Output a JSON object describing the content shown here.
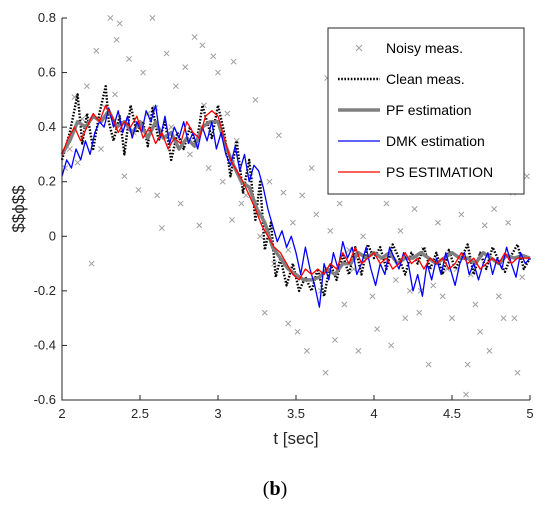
{
  "caption": {
    "open": "(",
    "letter": "b",
    "close": ")"
  },
  "chart_data": {
    "type": "line",
    "xlabel": "t [sec]",
    "ylabel": "$$ϕ$$",
    "xlim": [
      2,
      5
    ],
    "ylim": [
      -0.6,
      0.8
    ],
    "xticks": [
      2,
      2.5,
      3,
      3.5,
      4,
      4.5,
      5
    ],
    "xtick_labels": [
      "2",
      "2.5",
      "3",
      "3.5",
      "4",
      "4.5",
      "5"
    ],
    "yticks": [
      -0.6,
      -0.4,
      -0.2,
      0,
      0.2,
      0.4,
      0.6,
      0.8
    ],
    "ytick_labels": [
      "-0.6",
      "-0.4",
      "-0.2",
      "0",
      "0.2",
      "0.4",
      "0.6",
      "0.8"
    ],
    "grid": false,
    "legend_position": "top-right",
    "series": [
      {
        "name": "Noisy meas.",
        "style": "markers-x",
        "color": "#a0a0a0",
        "x": [
          2.02,
          2.05,
          2.08,
          2.1,
          2.13,
          2.16,
          2.19,
          2.22,
          2.25,
          2.28,
          2.31,
          2.34,
          2.37,
          2.4,
          2.43,
          2.46,
          2.49,
          2.52,
          2.55,
          2.58,
          2.61,
          2.64,
          2.67,
          2.7,
          2.73,
          2.76,
          2.79,
          2.82,
          2.85,
          2.88,
          2.91,
          2.94,
          2.97,
          3.0,
          3.03,
          3.06,
          3.09,
          3.12,
          3.15,
          3.18,
          3.21,
          3.24,
          3.27,
          3.3,
          3.33,
          3.36,
          3.39,
          3.42,
          3.45,
          3.48,
          3.51,
          3.54,
          3.57,
          3.6,
          3.63,
          3.66,
          3.69,
          3.72,
          3.75,
          3.78,
          3.81,
          3.84,
          3.87,
          3.9,
          3.93,
          3.96,
          3.99,
          4.02,
          4.05,
          4.08,
          4.11,
          4.14,
          4.17,
          4.2,
          4.23,
          4.26,
          4.29,
          4.32,
          4.35,
          4.38,
          4.41,
          4.44,
          4.47,
          4.5,
          4.53,
          4.56,
          4.59,
          4.62,
          4.65,
          4.68,
          4.71,
          4.74,
          4.77,
          4.8,
          4.83,
          4.86,
          4.89,
          4.92,
          4.95,
          4.98,
          2.35,
          2.6,
          2.9,
          3.1,
          3.45,
          3.7,
          4.0,
          4.3,
          4.6,
          4.9
        ],
        "y": [
          0.25,
          0.32,
          0.51,
          0.27,
          0.43,
          0.55,
          -0.1,
          0.68,
          0.32,
          0.47,
          0.8,
          0.52,
          0.78,
          0.22,
          0.65,
          0.38,
          0.17,
          0.6,
          0.45,
          0.8,
          0.15,
          0.03,
          0.67,
          0.4,
          0.55,
          0.12,
          0.62,
          0.3,
          0.73,
          0.04,
          0.48,
          0.25,
          0.66,
          0.6,
          0.2,
          0.45,
          0.06,
          0.35,
          0.12,
          0.15,
          0.22,
          0.5,
          0.0,
          -0.28,
          0.2,
          -0.1,
          0.37,
          0.16,
          -0.32,
          0.05,
          -0.35,
          0.15,
          -0.42,
          0.25,
          0.08,
          -0.2,
          -0.5,
          0.02,
          -0.38,
          0.12,
          -0.25,
          -0.05,
          -0.12,
          -0.42,
          0.0,
          0.2,
          -0.22,
          -0.34,
          -0.08,
          0.12,
          -0.4,
          -0.16,
          0.02,
          -0.3,
          -0.2,
          0.1,
          -0.28,
          -0.05,
          -0.47,
          -0.18,
          0.05,
          -0.22,
          -0.12,
          -0.3,
          -0.12,
          0.08,
          -0.58,
          -0.14,
          -0.25,
          -0.35,
          0.04,
          -0.42,
          0.1,
          -0.22,
          -0.3,
          0.05,
          0.16,
          -0.5,
          -0.15,
          0.22,
          0.72,
          0.47,
          0.7,
          0.64,
          -0.05,
          0.58,
          0.17,
          -0.2,
          -0.47,
          -0.3
        ]
      },
      {
        "name": "Clean meas.",
        "style": "dotted",
        "color": "#000000",
        "x": [
          2.0,
          2.05,
          2.1,
          2.13,
          2.16,
          2.2,
          2.24,
          2.28,
          2.3,
          2.33,
          2.37,
          2.4,
          2.44,
          2.48,
          2.52,
          2.55,
          2.58,
          2.62,
          2.66,
          2.7,
          2.74,
          2.78,
          2.82,
          2.86,
          2.9,
          2.93,
          2.96,
          3.0,
          3.04,
          3.08,
          3.12,
          3.16,
          3.2,
          3.24,
          3.27,
          3.3,
          3.34,
          3.37,
          3.4,
          3.44,
          3.48,
          3.52,
          3.56,
          3.6,
          3.64,
          3.68,
          3.72,
          3.76,
          3.8,
          3.84,
          3.88,
          3.92,
          3.96,
          4.0,
          4.04,
          4.08,
          4.12,
          4.16,
          4.2,
          4.24,
          4.28,
          4.32,
          4.36,
          4.4,
          4.44,
          4.48,
          4.52,
          4.56,
          4.6,
          4.64,
          4.68,
          4.72,
          4.76,
          4.8,
          4.84,
          4.88,
          4.92,
          4.96,
          5.0
        ],
        "y": [
          0.28,
          0.38,
          0.52,
          0.34,
          0.45,
          0.32,
          0.45,
          0.55,
          0.42,
          0.35,
          0.44,
          0.3,
          0.48,
          0.38,
          0.42,
          0.33,
          0.47,
          0.35,
          0.42,
          0.28,
          0.38,
          0.32,
          0.4,
          0.33,
          0.48,
          0.42,
          0.36,
          0.48,
          0.38,
          0.22,
          0.35,
          0.16,
          0.28,
          0.06,
          0.2,
          -0.05,
          0.05,
          -0.15,
          -0.08,
          -0.18,
          -0.1,
          -0.2,
          -0.15,
          -0.2,
          -0.12,
          -0.22,
          -0.1,
          -0.16,
          -0.07,
          -0.14,
          -0.04,
          -0.14,
          -0.03,
          -0.08,
          -0.04,
          -0.12,
          -0.03,
          -0.08,
          -0.14,
          -0.06,
          -0.1,
          -0.04,
          -0.12,
          -0.06,
          -0.14,
          -0.05,
          -0.12,
          -0.08,
          -0.03,
          -0.14,
          -0.06,
          -0.12,
          -0.04,
          -0.09,
          -0.13,
          -0.07,
          -0.03,
          -0.12,
          -0.08
        ]
      },
      {
        "name": "PF estimation",
        "style": "thick",
        "color": "#808080",
        "x": [
          2.0,
          2.05,
          2.1,
          2.15,
          2.2,
          2.25,
          2.3,
          2.35,
          2.4,
          2.45,
          2.5,
          2.55,
          2.6,
          2.65,
          2.7,
          2.75,
          2.8,
          2.85,
          2.9,
          2.95,
          3.0,
          3.05,
          3.1,
          3.15,
          3.2,
          3.25,
          3.3,
          3.35,
          3.4,
          3.45,
          3.5,
          3.55,
          3.6,
          3.65,
          3.7,
          3.75,
          3.8,
          3.85,
          3.9,
          3.95,
          4.0,
          4.05,
          4.1,
          4.15,
          4.2,
          4.25,
          4.3,
          4.35,
          4.4,
          4.45,
          4.5,
          4.55,
          4.6,
          4.65,
          4.7,
          4.75,
          4.8,
          4.85,
          4.9,
          4.95,
          5.0
        ],
        "y": [
          0.3,
          0.35,
          0.42,
          0.4,
          0.44,
          0.42,
          0.46,
          0.4,
          0.42,
          0.38,
          0.42,
          0.36,
          0.42,
          0.36,
          0.38,
          0.32,
          0.36,
          0.33,
          0.4,
          0.42,
          0.42,
          0.33,
          0.26,
          0.2,
          0.18,
          0.1,
          0.05,
          -0.04,
          -0.08,
          -0.12,
          -0.14,
          -0.16,
          -0.16,
          -0.15,
          -0.12,
          -0.14,
          -0.1,
          -0.1,
          -0.06,
          -0.08,
          -0.06,
          -0.08,
          -0.06,
          -0.1,
          -0.08,
          -0.08,
          -0.06,
          -0.08,
          -0.1,
          -0.08,
          -0.06,
          -0.08,
          -0.08,
          -0.1,
          -0.06,
          -0.08,
          -0.1,
          -0.07,
          -0.08,
          -0.07,
          -0.08
        ]
      },
      {
        "name": "DMK estimation",
        "style": "solid",
        "color": "#0000ff",
        "x": [
          2.0,
          2.03,
          2.06,
          2.09,
          2.12,
          2.15,
          2.18,
          2.21,
          2.24,
          2.27,
          2.3,
          2.33,
          2.36,
          2.39,
          2.42,
          2.45,
          2.48,
          2.51,
          2.54,
          2.57,
          2.6,
          2.63,
          2.66,
          2.69,
          2.72,
          2.75,
          2.78,
          2.81,
          2.84,
          2.87,
          2.9,
          2.93,
          2.96,
          2.99,
          3.02,
          3.05,
          3.08,
          3.11,
          3.14,
          3.17,
          3.2,
          3.23,
          3.26,
          3.29,
          3.32,
          3.35,
          3.38,
          3.41,
          3.44,
          3.47,
          3.5,
          3.53,
          3.56,
          3.59,
          3.62,
          3.65,
          3.68,
          3.71,
          3.74,
          3.77,
          3.8,
          3.83,
          3.86,
          3.89,
          3.92,
          3.95,
          3.98,
          4.01,
          4.04,
          4.07,
          4.1,
          4.13,
          4.16,
          4.19,
          4.22,
          4.25,
          4.28,
          4.31,
          4.34,
          4.37,
          4.4,
          4.43,
          4.46,
          4.49,
          4.52,
          4.55,
          4.58,
          4.61,
          4.64,
          4.67,
          4.7,
          4.73,
          4.76,
          4.79,
          4.82,
          4.85,
          4.88,
          4.91,
          4.94,
          4.97,
          5.0
        ],
        "y": [
          0.22,
          0.28,
          0.25,
          0.32,
          0.28,
          0.35,
          0.3,
          0.38,
          0.42,
          0.4,
          0.47,
          0.4,
          0.46,
          0.38,
          0.44,
          0.36,
          0.42,
          0.38,
          0.46,
          0.42,
          0.48,
          0.36,
          0.44,
          0.34,
          0.4,
          0.36,
          0.42,
          0.34,
          0.38,
          0.32,
          0.4,
          0.35,
          0.42,
          0.32,
          0.38,
          0.3,
          0.26,
          0.33,
          0.24,
          0.3,
          0.2,
          0.26,
          0.24,
          0.18,
          0.1,
          0.04,
          -0.02,
          0.02,
          -0.04,
          0.0,
          -0.06,
          -0.14,
          -0.04,
          -0.12,
          -0.18,
          -0.26,
          -0.1,
          -0.16,
          -0.06,
          -0.12,
          -0.02,
          -0.08,
          -0.04,
          -0.14,
          -0.1,
          -0.04,
          -0.12,
          -0.18,
          -0.1,
          -0.14,
          -0.04,
          -0.08,
          -0.12,
          -0.06,
          -0.1,
          -0.2,
          -0.14,
          -0.22,
          -0.1,
          -0.16,
          -0.08,
          -0.14,
          -0.06,
          -0.12,
          -0.18,
          -0.1,
          -0.06,
          -0.14,
          -0.1,
          -0.16,
          -0.1,
          -0.06,
          -0.14,
          -0.08,
          -0.12,
          -0.04,
          -0.1,
          -0.15,
          -0.06,
          -0.1,
          -0.08
        ]
      },
      {
        "name": "PS ESTIMATION",
        "style": "solid",
        "color": "#ff0000",
        "x": [
          2.0,
          2.04,
          2.08,
          2.12,
          2.16,
          2.2,
          2.24,
          2.28,
          2.32,
          2.36,
          2.4,
          2.44,
          2.48,
          2.52,
          2.56,
          2.6,
          2.64,
          2.68,
          2.72,
          2.76,
          2.8,
          2.84,
          2.88,
          2.92,
          2.96,
          3.0,
          3.04,
          3.08,
          3.12,
          3.16,
          3.2,
          3.24,
          3.28,
          3.32,
          3.36,
          3.4,
          3.44,
          3.48,
          3.52,
          3.56,
          3.6,
          3.64,
          3.68,
          3.72,
          3.76,
          3.8,
          3.84,
          3.88,
          3.92,
          3.96,
          4.0,
          4.04,
          4.08,
          4.12,
          4.16,
          4.2,
          4.24,
          4.28,
          4.32,
          4.36,
          4.4,
          4.44,
          4.48,
          4.52,
          4.56,
          4.6,
          4.64,
          4.68,
          4.72,
          4.76,
          4.8,
          4.84,
          4.88,
          4.92,
          4.96,
          5.0
        ],
        "y": [
          0.3,
          0.36,
          0.4,
          0.35,
          0.4,
          0.45,
          0.42,
          0.48,
          0.44,
          0.38,
          0.42,
          0.4,
          0.44,
          0.36,
          0.4,
          0.34,
          0.38,
          0.32,
          0.36,
          0.34,
          0.42,
          0.38,
          0.36,
          0.44,
          0.46,
          0.44,
          0.36,
          0.28,
          0.24,
          0.2,
          0.15,
          0.1,
          0.04,
          0.0,
          -0.04,
          -0.06,
          -0.1,
          -0.14,
          -0.16,
          -0.12,
          -0.14,
          -0.12,
          -0.14,
          -0.1,
          -0.12,
          -0.06,
          -0.1,
          -0.04,
          -0.1,
          -0.08,
          -0.06,
          -0.1,
          -0.08,
          -0.12,
          -0.1,
          -0.06,
          -0.1,
          -0.08,
          -0.12,
          -0.08,
          -0.1,
          -0.08,
          -0.12,
          -0.1,
          -0.06,
          -0.1,
          -0.08,
          -0.12,
          -0.1,
          -0.08,
          -0.1,
          -0.06,
          -0.1,
          -0.08,
          -0.08,
          -0.08
        ]
      }
    ]
  }
}
